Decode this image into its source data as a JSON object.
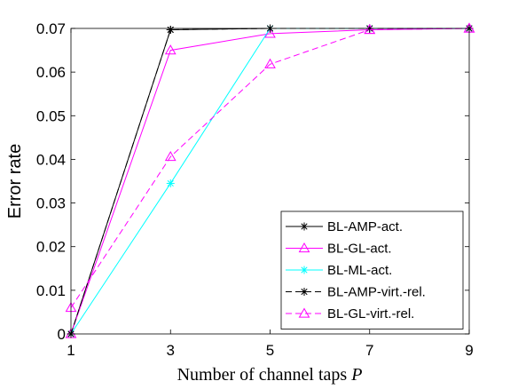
{
  "chart_data": {
    "type": "line",
    "xlabel_text": "Number of channel taps ",
    "xlabel_var": "P",
    "ylabel": "Error rate",
    "xlim": [
      1,
      9
    ],
    "ylim": [
      0,
      0.07
    ],
    "xticks": [
      1,
      3,
      5,
      7,
      9
    ],
    "yticks": [
      0,
      0.01,
      0.02,
      0.03,
      0.04,
      0.05,
      0.06,
      0.07
    ],
    "ytick_labels": [
      "0",
      "0.01",
      "0.02",
      "0.03",
      "0.04",
      "0.05",
      "0.06",
      "0.07"
    ],
    "grid": false,
    "legend_position": "bottom-right",
    "series": [
      {
        "name": "BL-AMP-act.",
        "x": [
          1,
          3,
          5,
          7,
          9
        ],
        "y": [
          0,
          0.0697,
          0.07,
          0.07,
          0.07
        ],
        "color": "#000000",
        "dash": "solid",
        "marker": "star"
      },
      {
        "name": "BL-GL-act.",
        "x": [
          1,
          3,
          5,
          7,
          9
        ],
        "y": [
          0,
          0.065,
          0.0688,
          0.0697,
          0.07
        ],
        "color": "#ff00ff",
        "dash": "solid",
        "marker": "triangle"
      },
      {
        "name": "BL-ML-act.",
        "x": [
          1,
          3,
          5,
          7,
          9
        ],
        "y": [
          0,
          0.0345,
          0.07,
          0.07,
          0.07
        ],
        "color": "#00ffff",
        "dash": "solid",
        "marker": "star"
      },
      {
        "name": "BL-AMP-virt.-rel.",
        "x": [
          1,
          3,
          5,
          7,
          9
        ],
        "y": [
          0,
          0.0697,
          0.07,
          0.07,
          0.07
        ],
        "color": "#000000",
        "dash": "dashed",
        "marker": "star"
      },
      {
        "name": "BL-GL-virt.-rel.",
        "x": [
          1,
          3,
          5,
          7,
          9
        ],
        "y": [
          0.006,
          0.0406,
          0.0618,
          0.0697,
          0.07
        ],
        "color": "#ff00ff",
        "dash": "dashed",
        "marker": "triangle"
      }
    ]
  }
}
